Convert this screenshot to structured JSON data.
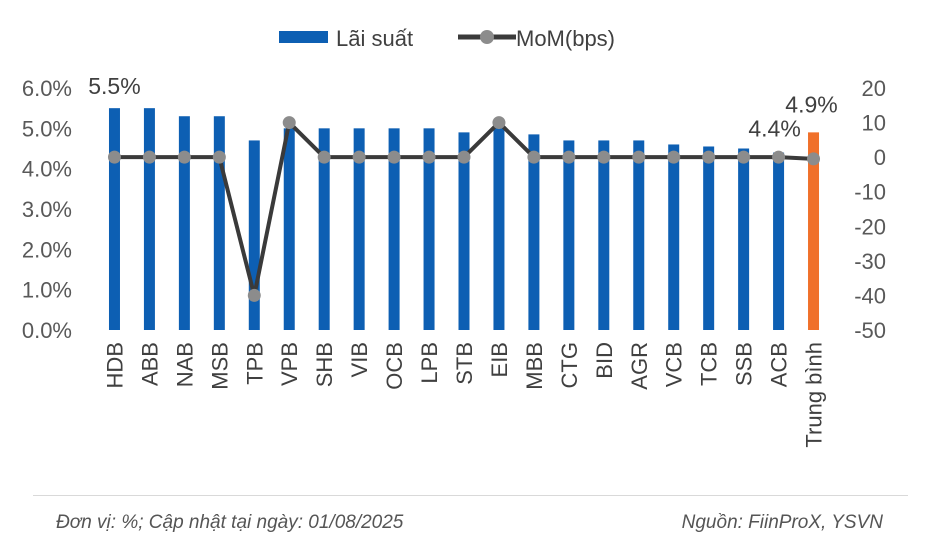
{
  "chart_data": {
    "type": "bar",
    "categories": [
      "HDB",
      "ABB",
      "NAB",
      "MSB",
      "TPB",
      "VPB",
      "SHB",
      "VIB",
      "OCB",
      "LPB",
      "STB",
      "EIB",
      "MBB",
      "CTG",
      "BID",
      "AGR",
      "VCB",
      "TCB",
      "SSB",
      "ACB",
      "Trung bình"
    ],
    "series": [
      {
        "name": "Lãi suất",
        "kind": "bar",
        "axis": "left",
        "values": [
          5.5,
          5.5,
          5.3,
          5.3,
          4.7,
          5.0,
          5.0,
          5.0,
          5.0,
          5.0,
          4.9,
          5.0,
          4.85,
          4.7,
          4.7,
          4.7,
          4.6,
          4.55,
          4.5,
          4.4,
          4.9
        ]
      },
      {
        "name": "MoM(bps)",
        "kind": "line",
        "axis": "right",
        "values": [
          0,
          0,
          0,
          0,
          -40,
          10,
          0,
          0,
          0,
          0,
          0,
          10,
          0,
          0,
          0,
          0,
          0,
          0,
          0,
          0,
          -0.5
        ]
      }
    ],
    "y_left": {
      "min": 0,
      "max": 6,
      "step": 1,
      "tick_labels": [
        "0.0%",
        "1.0%",
        "2.0%",
        "3.0%",
        "4.0%",
        "5.0%",
        "6.0%"
      ]
    },
    "y_right": {
      "min": -50,
      "max": 20,
      "step": 10,
      "tick_labels": [
        "-50",
        "-40",
        "-30",
        "-20",
        "-10",
        "0",
        "10",
        "20"
      ]
    },
    "data_labels": [
      {
        "index": 0,
        "text": "5.5%"
      },
      {
        "index": 19,
        "text": "4.4%"
      },
      {
        "index": 20,
        "text": "4.9%"
      }
    ],
    "legend": {
      "position": "top"
    },
    "grid": false
  },
  "colors": {
    "bar": "#0d5fb3",
    "bar_highlight": "#f0702a",
    "line": "#3a3a3a",
    "marker": "#8c8c8c",
    "axis_text": "#595959"
  },
  "footer": {
    "unit_note": "Đơn vị: %; Cập nhật tại ngày: 01/08/2025",
    "source": "Nguồn: FiinProX, YSVN"
  }
}
